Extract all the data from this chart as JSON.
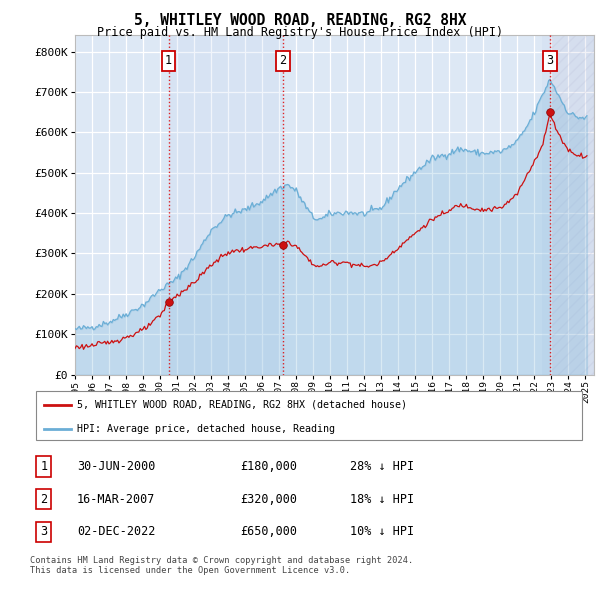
{
  "title": "5, WHITLEY WOOD ROAD, READING, RG2 8HX",
  "subtitle": "Price paid vs. HM Land Registry's House Price Index (HPI)",
  "yticks": [
    0,
    100000,
    200000,
    300000,
    400000,
    500000,
    600000,
    700000,
    800000
  ],
  "ytick_labels": [
    "£0",
    "£100K",
    "£200K",
    "£300K",
    "£400K",
    "£500K",
    "£600K",
    "£700K",
    "£800K"
  ],
  "plot_bg": "#dde8f5",
  "grid_color": "#ffffff",
  "transactions": [
    {
      "num": 1,
      "date": "30-JUN-2000",
      "price": 180000,
      "pct": "28%",
      "x_year": 2000.5
    },
    {
      "num": 2,
      "date": "16-MAR-2007",
      "price": 320000,
      "pct": "18%",
      "x_year": 2007.21
    },
    {
      "num": 3,
      "date": "02-DEC-2022",
      "price": 650000,
      "pct": "10%",
      "x_year": 2022.92
    }
  ],
  "legend_line1": "5, WHITLEY WOOD ROAD, READING, RG2 8HX (detached house)",
  "legend_line2": "HPI: Average price, detached house, Reading",
  "footnote": "Contains HM Land Registry data © Crown copyright and database right 2024.\nThis data is licensed under the Open Government Licence v3.0.",
  "xmin": 1995,
  "xmax": 2025.5,
  "ymin": 0,
  "ymax": 840000
}
